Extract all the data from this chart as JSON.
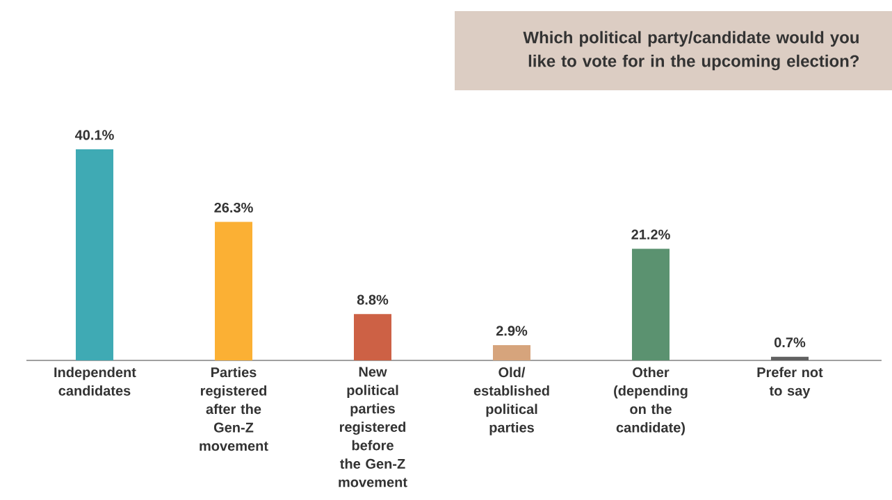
{
  "chart_data": {
    "type": "bar",
    "title": "Which political party/candidate would you like to vote for in the upcoming election?",
    "categories": [
      "Independent candidates",
      "Parties registered after the Gen-Z movement",
      "New political parties registered before the Gen-Z movement",
      "Old/ established political parties",
      "Other (depending on the candidate)",
      "Prefer not to say"
    ],
    "values": [
      40.1,
      26.3,
      8.8,
      2.9,
      21.2,
      0.7
    ],
    "value_labels": [
      "40.1%",
      "26.3%",
      "8.8%",
      "2.9%",
      "21.2%",
      "0.7%"
    ],
    "colors": [
      "#3faab4",
      "#fbb034",
      "#cd6145",
      "#d6a47c",
      "#5b9270",
      "#616161"
    ]
  }
}
